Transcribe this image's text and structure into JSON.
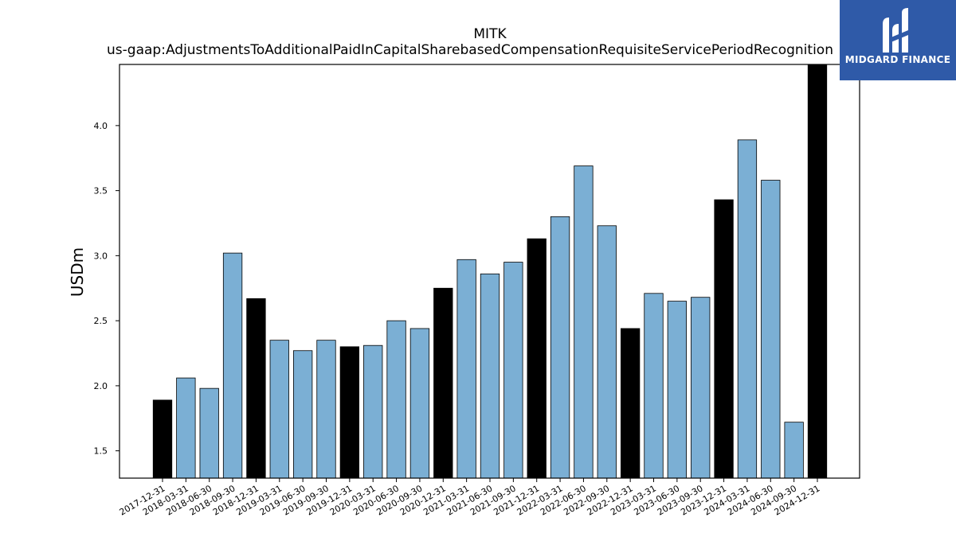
{
  "chart_data": {
    "type": "bar",
    "title": "MITK",
    "subtitle": "us-gaap:AdjustmentsToAdditionalPaidInCapitalSharebasedCompensationRequisiteServicePeriodRecognition",
    "ylabel": "USDm",
    "xlabel": "",
    "ylim": [
      1.29,
      4.47
    ],
    "yticks": [
      1.5,
      2.0,
      2.5,
      3.0,
      3.5,
      4.0
    ],
    "ytick_labels": [
      "1.5",
      "2.0",
      "2.5",
      "3.0",
      "3.5",
      "4.0"
    ],
    "grid": false,
    "categories": [
      "2017-12-31",
      "2018-03-31",
      "2018-06-30",
      "2018-09-30",
      "2018-12-31",
      "2019-03-31",
      "2019-06-30",
      "2019-09-30",
      "2019-12-31",
      "2020-03-31",
      "2020-06-30",
      "2020-09-30",
      "2020-12-31",
      "2021-03-31",
      "2021-06-30",
      "2021-09-30",
      "2021-12-31",
      "2022-03-31",
      "2022-06-30",
      "2022-09-30",
      "2022-12-31",
      "2023-03-31",
      "2023-06-30",
      "2023-09-30",
      "2023-12-31",
      "2024-03-31",
      "2024-06-30",
      "2024-09-30",
      "2024-12-31"
    ],
    "values": [
      1.89,
      2.06,
      1.98,
      3.02,
      2.67,
      2.35,
      2.27,
      2.35,
      2.3,
      2.31,
      2.5,
      2.44,
      2.75,
      2.97,
      2.86,
      2.95,
      3.13,
      3.3,
      3.69,
      3.23,
      2.44,
      2.71,
      2.65,
      2.68,
      3.43,
      3.89,
      3.58,
      1.72,
      4.47
    ],
    "highlight": [
      true,
      false,
      false,
      false,
      true,
      false,
      false,
      false,
      true,
      false,
      false,
      false,
      true,
      false,
      false,
      false,
      true,
      false,
      false,
      false,
      true,
      false,
      false,
      false,
      true,
      false,
      false,
      false,
      true
    ],
    "colors": {
      "bar": "#7bafd4",
      "highlight": "#000000",
      "edge": "#000000"
    }
  },
  "logo": {
    "text": "MIDGARD FINANCE",
    "background": "#2f5aa8"
  }
}
